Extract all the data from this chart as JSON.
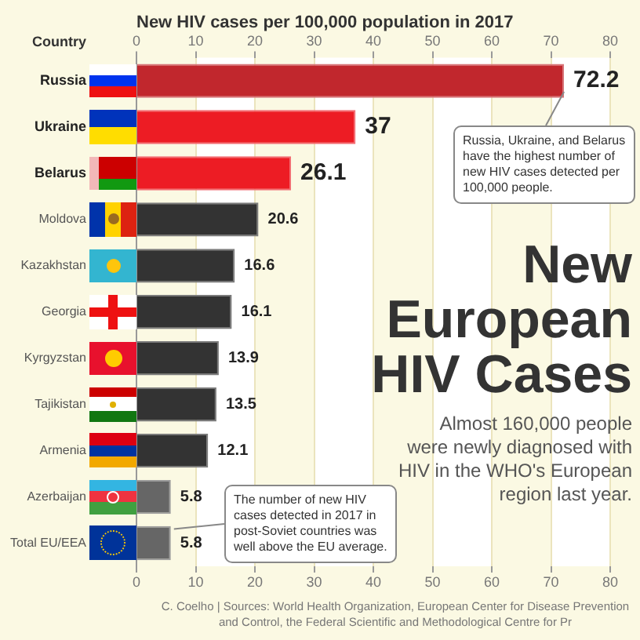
{
  "chart_data": {
    "type": "bar",
    "orientation": "horizontal",
    "title": "New European HIV Cases",
    "subtitle": "Almost 160,000 people were newly diagnosed with HIV in the WHO's European region last year.",
    "x2label": "New HIV cases per 100,000 population in 2017",
    "ylabel": "Country",
    "categories": [
      "Russia",
      "Ukraine",
      "Belarus",
      "Moldova",
      "Kazakhstan",
      "Georgia",
      "Kyrgyzstan",
      "Tajikistan",
      "Armenia",
      "Azerbaijan",
      "Total EU/EEA"
    ],
    "values": [
      72.2,
      37,
      26.1,
      20.6,
      16.6,
      16.1,
      13.9,
      13.5,
      12.1,
      5.8,
      5.8
    ],
    "colors": [
      "#c1272d",
      "#ed1c24",
      "#ed1c24",
      "#333333",
      "#333333",
      "#333333",
      "#333333",
      "#333333",
      "#333333",
      "#666666",
      "#666666"
    ],
    "xlim": [
      0,
      80
    ],
    "xticks": [
      0,
      10,
      20,
      30,
      40,
      50,
      60,
      70,
      80
    ],
    "x2lim": [
      0,
      80
    ],
    "x2ticks": [
      0,
      10,
      20,
      30,
      40,
      50,
      60,
      70,
      80
    ],
    "grid": "x",
    "data_labels": true,
    "annotations": [
      {
        "text": "Russia, Ukraine, and Belarus have the highest number of new HIV cases detected per 100,000 people.",
        "x": 72.2,
        "y": "Russia"
      },
      {
        "text": "The number of new HIV cases detected in 2017 in post-Soviet countries was well above the EU average.",
        "x": 5.8,
        "y": "Total EU/EEA"
      },
      "C. Coelho | Sources: World Health Organization, European Center for Disease Prevention and Control, the Federal Scientific and Methodological Centre for Pr"
    ]
  }
}
